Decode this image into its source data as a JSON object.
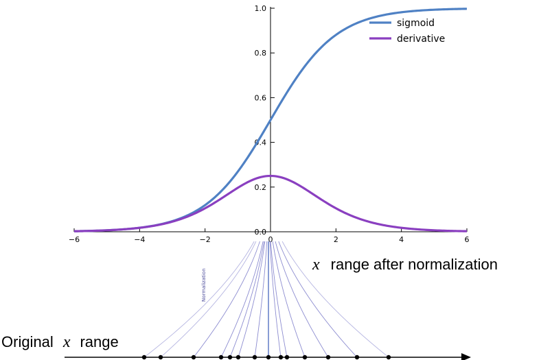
{
  "chart_data": {
    "type": "line",
    "title": "",
    "xlabel": "",
    "ylabel": "",
    "xlim": [
      -6,
      6
    ],
    "ylim": [
      0,
      1
    ],
    "x_ticks": [
      "−6",
      "−4",
      "−2",
      "0",
      "2",
      "4",
      "6"
    ],
    "y_ticks": [
      "0.0",
      "0.2",
      "0.4",
      "0.6",
      "0.8",
      "1.0"
    ],
    "grid": false,
    "legend_position": "top-right",
    "series": [
      {
        "name": "sigmoid",
        "function": "1/(1+exp(-x))",
        "color": "#4f81c4"
      },
      {
        "name": "derivative",
        "function": "s(x)*(1-s(x))",
        "color": "#8a3fc0"
      }
    ]
  },
  "diagram": {
    "rotated_label": "Normalization",
    "caption_after_x": "x",
    "caption_after_text": "range after normalization",
    "caption_original_text": "Original",
    "caption_original_x": "x",
    "caption_original_suffix": "range",
    "line_color": "#7878c8",
    "center_line_color": "#3a5ab8"
  }
}
